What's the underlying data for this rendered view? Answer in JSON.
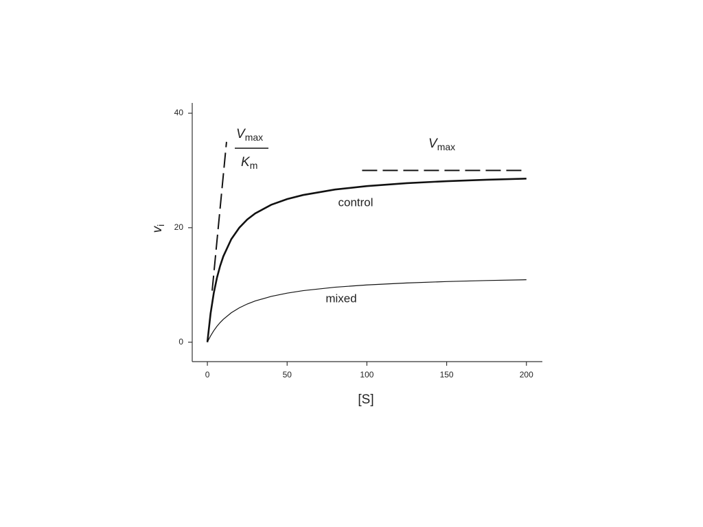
{
  "chart_data": {
    "type": "line",
    "x_label": "[S]",
    "y_label": {
      "text": "v",
      "subscript": "i"
    },
    "xlim": [
      -9.5,
      210
    ],
    "ylim": [
      -3.4,
      41.8
    ],
    "xticks": [
      0,
      50,
      100,
      150,
      200
    ],
    "yticks": [
      0,
      20,
      40
    ],
    "grid": false,
    "series": [
      {
        "name": "control",
        "color": "#111111",
        "x": [
          0,
          2,
          4,
          6,
          8,
          10,
          15,
          20,
          25,
          30,
          40,
          50,
          60,
          80,
          100,
          125,
          150,
          175,
          200
        ],
        "values": [
          0,
          5.0,
          8.57,
          11.25,
          13.33,
          15,
          18,
          20,
          21.43,
          22.5,
          24,
          25,
          25.71,
          26.67,
          27.27,
          27.78,
          28.13,
          28.38,
          28.57
        ]
      },
      {
        "name": "mixed",
        "color": "#111111",
        "x": [
          0,
          2,
          4,
          6,
          8,
          10,
          15,
          20,
          25,
          30,
          40,
          50,
          60,
          80,
          100,
          125,
          150,
          175,
          200
        ],
        "values": [
          0,
          1.09,
          2.0,
          2.77,
          3.43,
          4.0,
          5.14,
          6.0,
          6.67,
          7.2,
          8.0,
          8.57,
          9.0,
          9.6,
          10.0,
          10.34,
          10.59,
          10.77,
          10.91
        ]
      }
    ],
    "reference_lines": [
      {
        "x": [
          3,
          12
        ],
        "values": [
          9,
          35
        ],
        "color": "#111111",
        "dashed": true
      },
      {
        "x": [
          97,
          200
        ],
        "values": [
          30,
          30
        ],
        "color": "#111111",
        "dashed": true
      }
    ],
    "slope_label": {
      "numerator": {
        "text": "V",
        "subscript": "max"
      },
      "denominator": {
        "text": "K",
        "subscript": "m"
      }
    },
    "vmax_label": {
      "text": "V",
      "subscript": "max"
    }
  }
}
